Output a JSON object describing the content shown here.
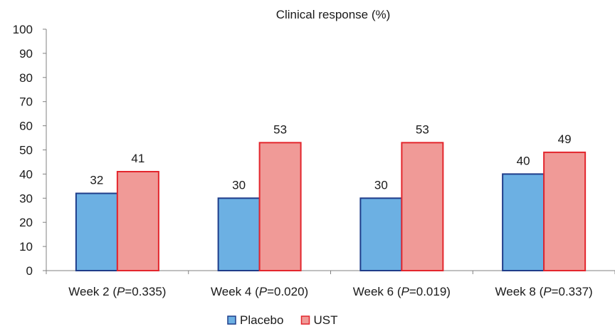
{
  "chart_data": {
    "type": "bar",
    "title": "Clinical response (%)",
    "xlabel": "",
    "ylabel": "",
    "ylim": [
      0,
      100
    ],
    "yticks": [
      0,
      10,
      20,
      30,
      40,
      50,
      60,
      70,
      80,
      90,
      100
    ],
    "grid": false,
    "legend_position": "bottom-center",
    "categories": [
      {
        "prefix": "Week 2 (",
        "italic": "P",
        "suffix": "=0.335)"
      },
      {
        "prefix": "Week 4 (",
        "italic": "P",
        "suffix": "=0.020)"
      },
      {
        "prefix": "Week 6 (",
        "italic": "P",
        "suffix": "=0.019)"
      },
      {
        "prefix": "Week 8 (",
        "italic": "P",
        "suffix": "=0.337)"
      }
    ],
    "series": [
      {
        "name": "Placebo",
        "values": [
          32,
          30,
          30,
          40
        ],
        "fill": "#6cb0e3",
        "stroke": "#1f3d8a"
      },
      {
        "name": "UST",
        "values": [
          41,
          53,
          53,
          49
        ],
        "fill": "#f09a97",
        "stroke": "#e3262d"
      }
    ]
  }
}
